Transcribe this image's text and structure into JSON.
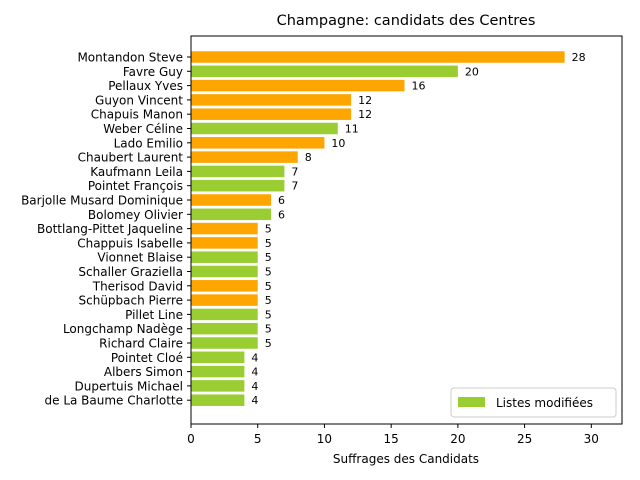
{
  "chart_data": {
    "type": "bar",
    "orientation": "horizontal",
    "title": "Champagne: candidats des Centres",
    "xlabel": "Suffrages des Candidats",
    "ylabel": "",
    "xlim": [
      0,
      32.3
    ],
    "xticks": [
      0,
      5,
      10,
      15,
      20,
      25,
      30
    ],
    "grid": false,
    "legend": {
      "position": "lower right",
      "entries": [
        {
          "label": "Listes modifiées",
          "color": "#9acd32"
        }
      ]
    },
    "colors": {
      "unmodified": "#ffa500",
      "modified": "#9acd32"
    },
    "categories": [
      "Montandon Steve",
      "Favre Guy",
      "Pellaux Yves",
      "Guyon Vincent",
      "Chapuis Manon",
      "Weber Céline",
      "Lado Emilio",
      "Chaubert Laurent",
      "Kaufmann Leila",
      "Pointet François",
      "Barjolle Musard Dominique",
      "Bolomey Olivier",
      "Bottlang-Pittet Jaqueline",
      "Chappuis Isabelle",
      "Vionnet Blaise",
      "Schaller Graziella",
      "Therisod David",
      "Schüpbach Pierre",
      "Pillet Line",
      "Longchamp Nadège",
      "Richard Claire",
      "Pointet Cloé",
      "Albers Simon",
      "Dupertuis Michael",
      "de La Baume Charlotte"
    ],
    "values": [
      28,
      20,
      16,
      12,
      12,
      11,
      10,
      8,
      7,
      7,
      6,
      6,
      5,
      5,
      5,
      5,
      5,
      5,
      5,
      5,
      5,
      4,
      4,
      4,
      4
    ],
    "modified": [
      false,
      true,
      false,
      false,
      false,
      true,
      false,
      false,
      true,
      true,
      false,
      true,
      false,
      false,
      true,
      true,
      false,
      false,
      true,
      true,
      true,
      true,
      true,
      true,
      true
    ]
  }
}
